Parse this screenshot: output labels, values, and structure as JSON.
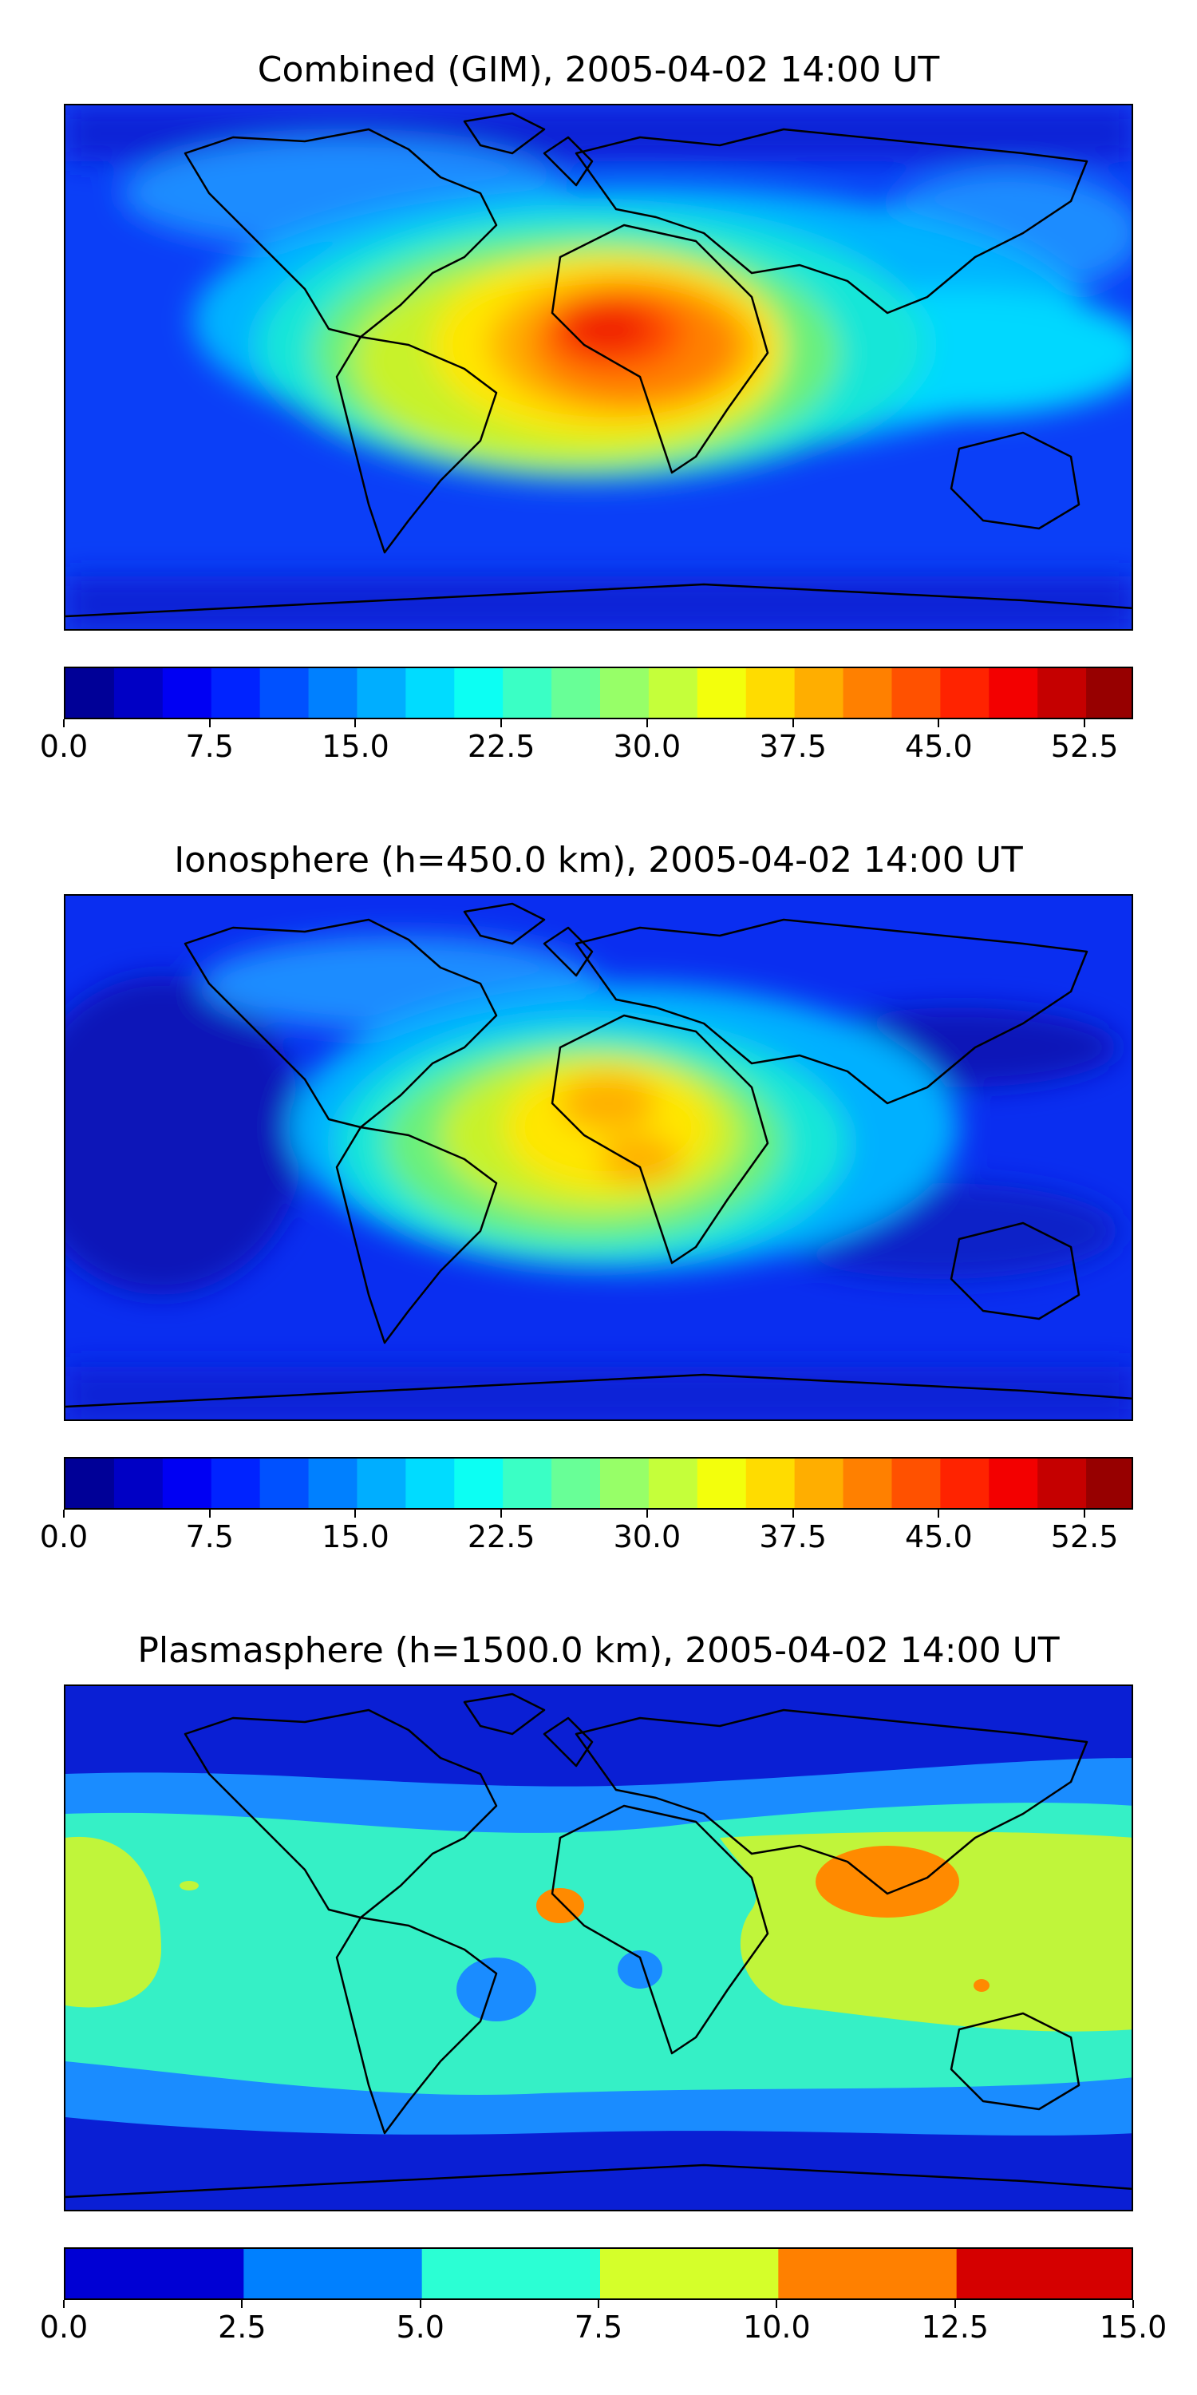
{
  "figure": {
    "panels": [
      {
        "id": "combined",
        "title": "Combined (GIM), 2005-04-02 14:00 UT",
        "colorbar": {
          "min": 0.0,
          "max": 55.0,
          "step": 2.5,
          "ticks": [
            "0.0",
            "7.5",
            "15.0",
            "22.5",
            "30.0",
            "37.5",
            "45.0",
            "52.5"
          ],
          "tick_values": [
            0.0,
            7.5,
            15.0,
            22.5,
            30.0,
            37.5,
            45.0,
            52.5
          ]
        }
      },
      {
        "id": "ionosphere",
        "title": "Ionosphere  (h=450.0 km), 2005-04-02 14:00 UT",
        "colorbar": {
          "min": 0.0,
          "max": 55.0,
          "step": 2.5,
          "ticks": [
            "0.0",
            "7.5",
            "15.0",
            "22.5",
            "30.0",
            "37.5",
            "45.0",
            "52.5"
          ],
          "tick_values": [
            0.0,
            7.5,
            15.0,
            22.5,
            30.0,
            37.5,
            45.0,
            52.5
          ]
        }
      },
      {
        "id": "plasmasphere",
        "title": "Plasmasphere (h=1500.0 km), 2005-04-02 14:00 UT",
        "colorbar": {
          "min": 0.0,
          "max": 15.0,
          "step": 2.5,
          "ticks": [
            "0.0",
            "2.5",
            "5.0",
            "7.5",
            "10.0",
            "12.5",
            "15.0"
          ],
          "tick_values": [
            0.0,
            2.5,
            5.0,
            7.5,
            10.0,
            12.5,
            15.0
          ]
        }
      }
    ]
  },
  "chart_data": [
    {
      "type": "heatmap",
      "title": "Combined (GIM), 2005-04-02 14:00 UT",
      "projection": "plate-carree world map with coastlines",
      "colormap": "jet",
      "levels": {
        "min": 0.0,
        "max": 55.0,
        "step": 2.5
      },
      "features": [
        {
          "region": "north Africa / Sahara (daytime equatorial anomaly)",
          "lon": 5,
          "lat": 15,
          "value": 50
        },
        {
          "region": "central-east Africa",
          "lon": 25,
          "lat": 5,
          "value": 45
        },
        {
          "region": "south Atlantic / South America east",
          "lon": -35,
          "lat": -5,
          "value": 35
        },
        {
          "region": "Indian Ocean",
          "lon": 75,
          "lat": 0,
          "value": 27
        },
        {
          "region": "west Pacific / Indonesia",
          "lon": 130,
          "lat": 5,
          "value": 20
        },
        {
          "region": "Pacific night side",
          "lon": -140,
          "lat": 0,
          "value": 12
        },
        {
          "region": "high latitudes",
          "lon": 0,
          "lat": 75,
          "value": 7
        }
      ]
    },
    {
      "type": "heatmap",
      "title": "Ionosphere  (h=450.0 km), 2005-04-02 14:00 UT",
      "projection": "plate-carree world map with coastlines",
      "colormap": "jet",
      "levels": {
        "min": 0.0,
        "max": 55.0,
        "step": 2.5
      },
      "features": [
        {
          "region": "west Africa",
          "lon": 0,
          "lat": 12,
          "value": 40
        },
        {
          "region": "central Africa",
          "lon": 20,
          "lat": 0,
          "value": 35
        },
        {
          "region": "south Atlantic",
          "lon": -25,
          "lat": -5,
          "value": 30
        },
        {
          "region": "Indian Ocean",
          "lon": 70,
          "lat": 0,
          "value": 20
        },
        {
          "region": "Pacific night side",
          "lon": -150,
          "lat": 0,
          "value": 4
        },
        {
          "region": "high latitudes",
          "lon": 0,
          "lat": 75,
          "value": 7
        }
      ]
    },
    {
      "type": "heatmap",
      "title": "Plasmasphere (h=1500.0 km), 2005-04-02 14:00 UT",
      "projection": "plate-carree world map with coastlines",
      "colormap": "jet",
      "levels": {
        "min": 0.0,
        "max": 15.0,
        "step": 2.5
      },
      "features": [
        {
          "region": "south Asia / China",
          "lon": 95,
          "lat": 25,
          "value": 11
        },
        {
          "region": "west Africa coast",
          "lon": -12,
          "lat": 10,
          "value": 11
        },
        {
          "region": "equatorial band",
          "lon": 0,
          "lat": 0,
          "value": 6
        },
        {
          "region": "Indian Ocean / Australia",
          "lon": 110,
          "lat": -10,
          "value": 8.5
        },
        {
          "region": "east Pacific",
          "lon": -170,
          "lat": 0,
          "value": 8.5
        },
        {
          "region": "mid latitudes",
          "lon": 0,
          "lat": 40,
          "value": 3.5
        },
        {
          "region": "high latitudes",
          "lon": 0,
          "lat": 75,
          "value": 1
        }
      ]
    }
  ]
}
